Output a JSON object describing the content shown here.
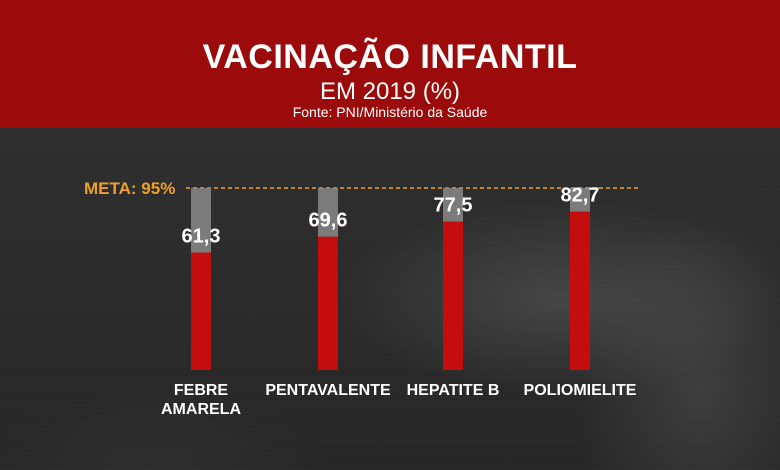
{
  "header": {
    "title": "VACINAÇÃO INFANTIL",
    "subtitle": "EM 2019 (%)",
    "source": "Fonte: PNI/Ministério da Saúde"
  },
  "colors": {
    "header_bg": "#9b0b0b",
    "bar_fill": "#c40d0d",
    "bar_track": "#8a8a8a",
    "meta_line": "#f0a028",
    "text": "#ffffff"
  },
  "chart_data": {
    "type": "bar",
    "title": "VACINAÇÃO INFANTIL EM 2019 (%)",
    "categories": [
      [
        "FEBRE",
        "AMARELA"
      ],
      [
        "PENTAVALENTE"
      ],
      [
        "HEPATITE B"
      ],
      [
        "POLIOMIELITE"
      ]
    ],
    "values": [
      61.3,
      69.6,
      77.5,
      82.7
    ],
    "value_labels": [
      "61,3",
      "69,6",
      "77,5",
      "82,7"
    ],
    "target": 95,
    "target_label": "META: 95%",
    "ylim": [
      0,
      95
    ],
    "xlabel": "",
    "ylabel": "",
    "grid": false
  }
}
